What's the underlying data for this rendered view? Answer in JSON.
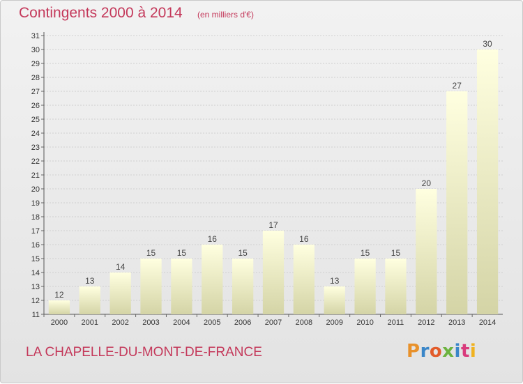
{
  "header": {
    "title": "Contingents 2000 à 2014",
    "subtitle": "(en milliers d'€)"
  },
  "footer": {
    "commune": "LA CHAPELLE-DU-MONT-DE-FRANCE",
    "logo_text": "Proxiti",
    "logo_colors": [
      "#e8912b",
      "#3a86c8",
      "#e25b2a",
      "#6cb33f",
      "#3a86c8",
      "#d93b7c",
      "#f0b21f"
    ]
  },
  "colors": {
    "title": "#c4385a",
    "bar_top": "#ffffe0",
    "bar_bottom": "#d4d4a6",
    "grid": "#cfcfcf"
  },
  "chart_data": {
    "type": "bar",
    "title": "Contingents 2000 à 2014",
    "subtitle": "(en milliers d'€)",
    "categories": [
      "2000",
      "2001",
      "2002",
      "2003",
      "2004",
      "2005",
      "2006",
      "2007",
      "2008",
      "2009",
      "2010",
      "2011",
      "2012",
      "2013",
      "2014"
    ],
    "values": [
      12,
      13,
      14,
      15,
      15,
      16,
      15,
      17,
      16,
      13,
      15,
      15,
      20,
      27,
      30
    ],
    "ylim": [
      11,
      31
    ],
    "yticks": [
      11,
      12,
      13,
      14,
      15,
      16,
      17,
      18,
      19,
      20,
      21,
      22,
      23,
      24,
      25,
      26,
      27,
      28,
      29,
      30,
      31
    ],
    "grid": true,
    "data_labels": true,
    "legend": "none"
  }
}
